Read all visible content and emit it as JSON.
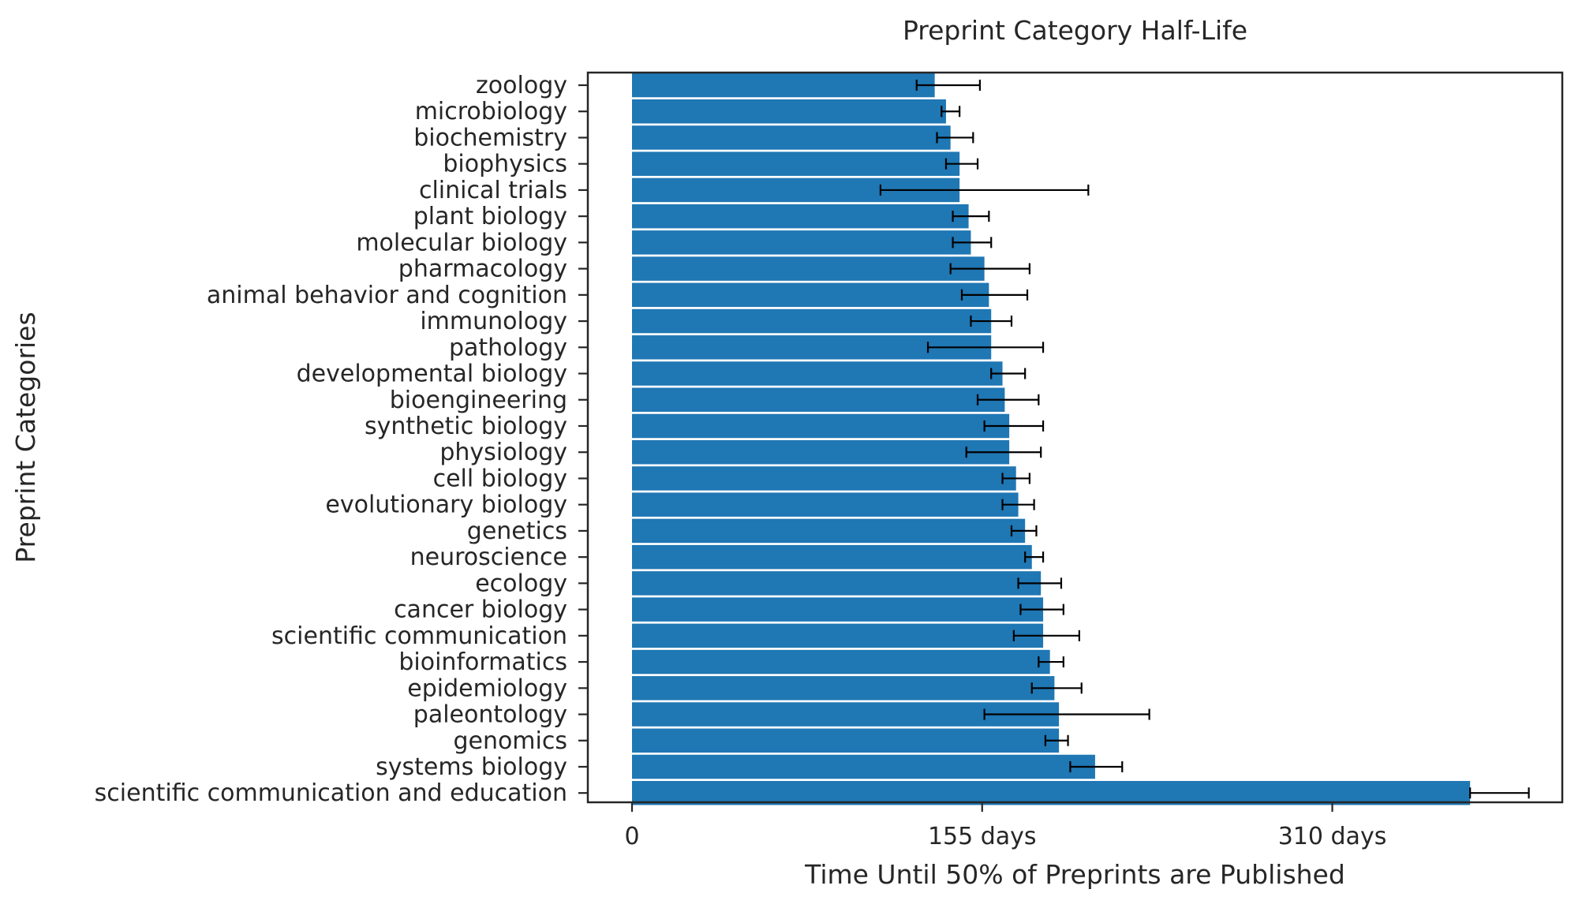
{
  "chart_data": {
    "type": "bar",
    "orientation": "horizontal",
    "title": "Preprint Category Half-Life",
    "xlabel": "Time Until 50% of Preprints are Published",
    "ylabel": "Preprint Categories",
    "xlim": [
      -20,
      410
    ],
    "xticks": [
      0,
      155,
      310
    ],
    "xtick_labels": [
      "0",
      "155 days",
      "310 days"
    ],
    "bar_color": "#1f77b4",
    "errorbar_color": "#000000",
    "grid": false,
    "categories": [
      "zoology",
      "microbiology",
      "biochemistry",
      "biophysics",
      "clinical trials",
      "plant biology",
      "molecular biology",
      "pharmacology",
      "animal behavior and cognition",
      "immunology",
      "pathology",
      "developmental biology",
      "bioengineering",
      "synthetic biology",
      "physiology",
      "cell biology",
      "evolutionary biology",
      "genetics",
      "neuroscience",
      "ecology",
      "cancer biology",
      "scientific communication",
      "bioinformatics",
      "epidemiology",
      "paleontology",
      "genomics",
      "systems biology",
      "scientific communication and education"
    ],
    "values": [
      134,
      139,
      141,
      145,
      145,
      149,
      150,
      156,
      158,
      159,
      159,
      164,
      165,
      167,
      167,
      170,
      171,
      174,
      177,
      181,
      182,
      182,
      185,
      187,
      189,
      189,
      205,
      371
    ],
    "error_low": [
      126,
      137,
      135,
      139,
      110,
      142,
      142,
      141,
      146,
      150,
      131,
      159,
      153,
      156,
      148,
      164,
      164,
      168,
      174,
      171,
      172,
      169,
      180,
      177,
      156,
      183,
      194,
      371
    ],
    "error_high": [
      154,
      145,
      151,
      153,
      202,
      158,
      159,
      176,
      175,
      168,
      182,
      174,
      180,
      182,
      181,
      176,
      178,
      179,
      182,
      190,
      191,
      198,
      191,
      199,
      229,
      193,
      217,
      397
    ]
  }
}
